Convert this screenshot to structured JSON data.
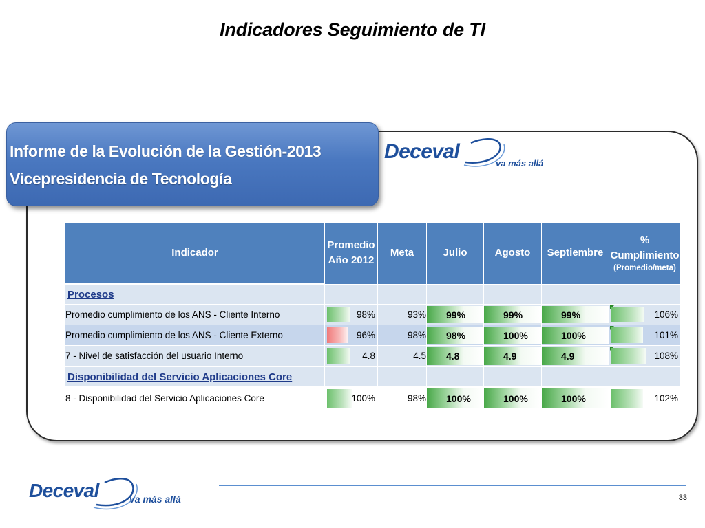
{
  "slide": {
    "title": "Indicadores Seguimiento de TI",
    "page_number": "33"
  },
  "banner": {
    "line1": "Informe de la Evolución de la Gestión-2013",
    "line2": "Vicepresidencia de Tecnología"
  },
  "logo": {
    "word": "Deceval",
    "tagline": "va más allá"
  },
  "table": {
    "headers": {
      "indicador": "Indicador",
      "promedio": "Promedio Año 2012",
      "meta": "Meta",
      "julio": "Julio",
      "agosto": "Agosto",
      "septiembre": "Septiembre",
      "cumplimiento": "% Cumplimiento",
      "cumplimiento_sub": "(Promedio/meta)"
    },
    "sections": [
      {
        "name": "Procesos",
        "rows": [
          {
            "indicador": "Promedio cumplimiento de los ANS - Cliente Interno",
            "promedio": "98%",
            "meta": "93%",
            "julio": "99%",
            "agosto": "99%",
            "septiembre": "99%",
            "cumplimiento": "106%"
          },
          {
            "indicador": "Promedio cumplimiento de los ANS - Cliente Externo",
            "promedio": "96%",
            "meta": "98%",
            "julio": "98%",
            "agosto": "100%",
            "septiembre": "100%",
            "cumplimiento": "101%"
          },
          {
            "indicador": "7 - Nivel de satisfacción del usuario Interno",
            "promedio": "4.8",
            "meta": "4.5",
            "julio": "4.8",
            "agosto": "4.9",
            "septiembre": "4.9",
            "cumplimiento": "108%"
          }
        ]
      },
      {
        "name": "Disponibilidad del Servicio Aplicaciones Core",
        "rows": [
          {
            "indicador": "8 - Disponibilidad del Servicio Aplicaciones Core",
            "promedio": "100%",
            "meta": "98%",
            "julio": "100%",
            "agosto": "100%",
            "septiembre": "100%",
            "cumplimiento": "102%"
          }
        ]
      }
    ]
  },
  "colors": {
    "header_bg": "#4f81bd",
    "row_light": "#dbe5f1",
    "row_mid": "#c6d6ec",
    "bar_green": "#6cc06c",
    "bar_red": "#f07a7a",
    "logo_blue": "#1e4f9c"
  }
}
